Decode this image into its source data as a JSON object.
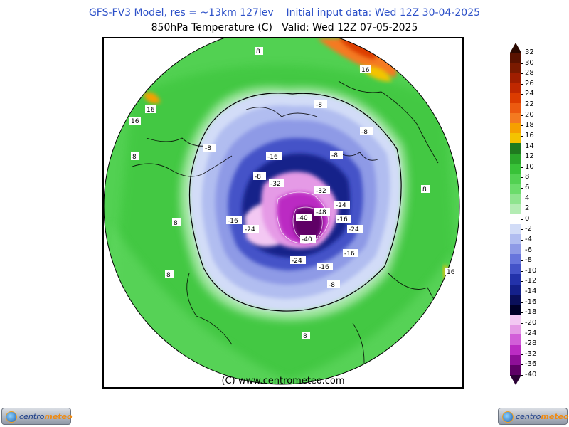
{
  "header": {
    "line1": "GFS-FV3 Model, res = ~13km 127lev    Initial input data: Wed 12Z 30-04-2025",
    "line2": "850hPa Temperature (C)   Valid: Wed 12Z 07-05-2025"
  },
  "map": {
    "projection": "polar-stereographic-north",
    "credit": "(C) www.centrometeo.com"
  },
  "colorbar": {
    "levels": [
      32,
      30,
      28,
      26,
      24,
      22,
      20,
      18,
      16,
      14,
      12,
      10,
      8,
      6,
      4,
      2,
      0,
      -2,
      -4,
      -6,
      -8,
      -10,
      -12,
      -14,
      -16,
      -18,
      -20,
      -24,
      -28,
      -32,
      -36,
      -40
    ],
    "colors": [
      "#5a1200",
      "#7a1a00",
      "#a01e00",
      "#c02800",
      "#dc3c00",
      "#ec5a10",
      "#f47a20",
      "#f6a000",
      "#f4c300",
      "#1f7a1f",
      "#2aa62a",
      "#38c238",
      "#52d152",
      "#6bdc6b",
      "#8fe48f",
      "#b4ecb4",
      "#ffffff",
      "#d2dcf7",
      "#b1bdf0",
      "#8e9ae6",
      "#6775dc",
      "#4453c8",
      "#2332aa",
      "#14208a",
      "#0a0f5a",
      "#000028",
      "#f3c8f3",
      "#e59ae6",
      "#d25ed8",
      "#bb2cc3",
      "#8e0f98",
      "#5e0066"
    ]
  },
  "map_labels": [
    {
      "text": "-8"
    },
    {
      "text": "-8"
    },
    {
      "text": "-8"
    },
    {
      "text": "-8"
    },
    {
      "text": "-8"
    },
    {
      "text": "-8"
    },
    {
      "text": "-16"
    },
    {
      "text": "-16"
    },
    {
      "text": "-16"
    },
    {
      "text": "-16"
    },
    {
      "text": "-16"
    },
    {
      "text": "-24"
    },
    {
      "text": "-24"
    },
    {
      "text": "-24"
    },
    {
      "text": "-24"
    },
    {
      "text": "-32"
    },
    {
      "text": "-32"
    },
    {
      "text": "-40"
    },
    {
      "text": "-40"
    },
    {
      "text": "-48"
    },
    {
      "text": "8"
    },
    {
      "text": "8"
    },
    {
      "text": "8"
    },
    {
      "text": "8"
    },
    {
      "text": "8"
    },
    {
      "text": "8"
    },
    {
      "text": "16"
    },
    {
      "text": "16"
    },
    {
      "text": "16"
    },
    {
      "text": "16"
    }
  ],
  "logos": {
    "left_text_a": "centro",
    "left_text_b": "meteo",
    "right_text_a": "centro",
    "right_text_b": "meteo"
  }
}
